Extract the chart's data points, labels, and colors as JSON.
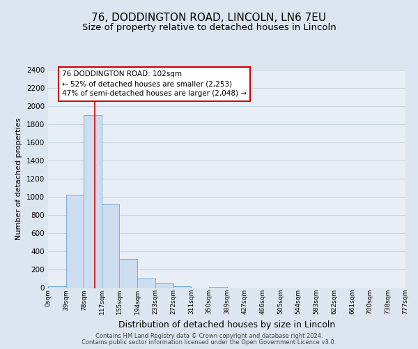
{
  "title1": "76, DODDINGTON ROAD, LINCOLN, LN6 7EU",
  "title2": "Size of property relative to detached houses in Lincoln",
  "xlabel": "Distribution of detached houses by size in Lincoln",
  "ylabel": "Number of detached properties",
  "bar_edges": [
    0,
    39,
    78,
    117,
    155,
    194,
    233,
    272,
    311,
    350,
    389,
    427,
    466,
    505,
    544,
    583,
    622,
    661,
    700,
    738,
    777
  ],
  "bar_heights": [
    20,
    1025,
    1900,
    925,
    320,
    105,
    50,
    20,
    0,
    15,
    0,
    0,
    0,
    0,
    0,
    0,
    0,
    0,
    0,
    0
  ],
  "bar_color": "#cddcef",
  "bar_edge_color": "#7aadd4",
  "vline_x": 102,
  "vline_color": "#cc0000",
  "ylim": [
    0,
    2400
  ],
  "annotation_text": "76 DODDINGTON ROAD: 102sqm\n← 52% of detached houses are smaller (2,253)\n47% of semi-detached houses are larger (2,048) →",
  "annotation_box_color": "#ffffff",
  "annotation_box_edge_color": "#cc0000",
  "footer1": "Contains HM Land Registry data © Crown copyright and database right 2024.",
  "footer2": "Contains public sector information licensed under the Open Government Licence v3.0.",
  "background_color": "#dde6f0",
  "plot_bg_color": "#e8eef6",
  "grid_color": "#c8d4e0",
  "title1_fontsize": 11,
  "title2_fontsize": 9.5,
  "xlabel_fontsize": 9,
  "ylabel_fontsize": 8,
  "tick_labels": [
    "0sqm",
    "39sqm",
    "78sqm",
    "117sqm",
    "155sqm",
    "194sqm",
    "233sqm",
    "272sqm",
    "311sqm",
    "350sqm",
    "389sqm",
    "427sqm",
    "466sqm",
    "505sqm",
    "544sqm",
    "583sqm",
    "622sqm",
    "661sqm",
    "700sqm",
    "738sqm",
    "777sqm"
  ]
}
